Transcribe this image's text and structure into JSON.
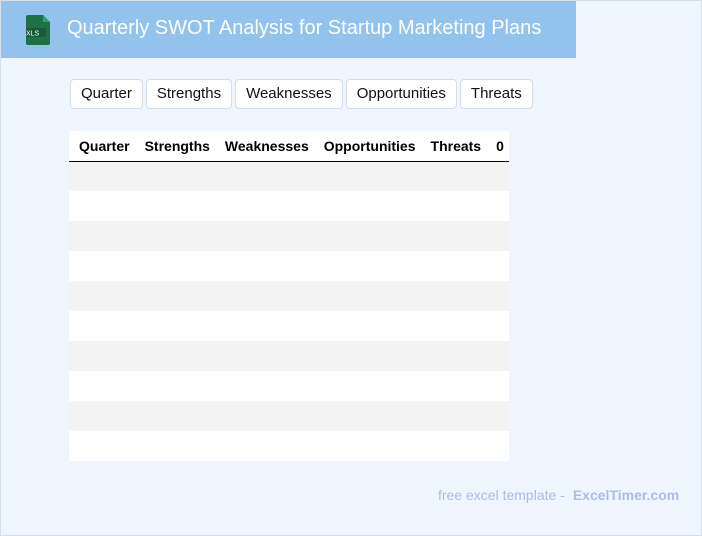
{
  "header": {
    "title": "Quarterly SWOT Analysis for Startup Marketing Plans",
    "logo_text": "XLS",
    "brand_color": "#93c2ec"
  },
  "buttons": [
    "Quarter",
    "Strengths",
    "Weaknesses",
    "Opportunities",
    "Threats"
  ],
  "table": {
    "columns": [
      "Quarter",
      "Strengths",
      "Weaknesses",
      "Opportunities",
      "Threats",
      "0"
    ],
    "row_count": 10
  },
  "footer": {
    "text": "free excel template -",
    "link": "ExcelTimer.com"
  }
}
